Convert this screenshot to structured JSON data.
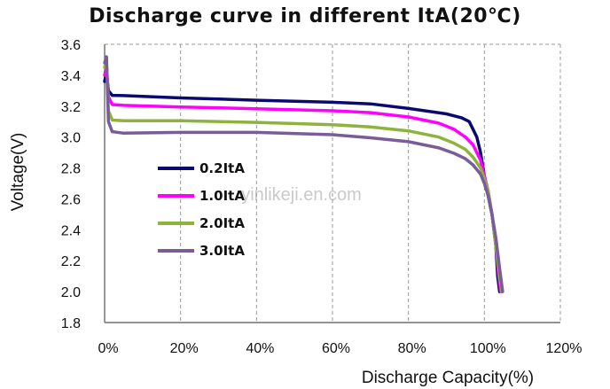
{
  "chart_data": {
    "type": "line",
    "title": "Discharge curve in different ItA(20℃)",
    "xlabel": "Discharge Capacity(%)",
    "ylabel": "Voltage(V)",
    "xlim": [
      0,
      120
    ],
    "ylim": [
      1.8,
      3.6
    ],
    "x_ticks": [
      "0%",
      "20%",
      "40%",
      "60%",
      "80%",
      "100%",
      "120%"
    ],
    "y_ticks": [
      "3.6",
      "3.4",
      "3.2",
      "3.0",
      "2.8",
      "2.6",
      "2.4",
      "2.2",
      "2.0",
      "1.8"
    ],
    "grid": {
      "vertical": true,
      "horizontal": false,
      "style": "dashed"
    },
    "legend_position": "left",
    "watermark": "yinlikeji.en.com",
    "series": [
      {
        "name": "0.2ItA",
        "color": "#0a0a6e",
        "points": [
          [
            0,
            3.36
          ],
          [
            0.5,
            3.42
          ],
          [
            1,
            3.3
          ],
          [
            2,
            3.27
          ],
          [
            5,
            3.268
          ],
          [
            20,
            3.253
          ],
          [
            40,
            3.238
          ],
          [
            60,
            3.225
          ],
          [
            70,
            3.215
          ],
          [
            80,
            3.185
          ],
          [
            90,
            3.15
          ],
          [
            94,
            3.125
          ],
          [
            96,
            3.1
          ],
          [
            98,
            3.0
          ],
          [
            99,
            2.9
          ],
          [
            100,
            2.75
          ],
          [
            101,
            2.62
          ],
          [
            102,
            2.5
          ],
          [
            103,
            2.3
          ],
          [
            103.5,
            2.1
          ],
          [
            104,
            2.0
          ]
        ]
      },
      {
        "name": "1.0ItA",
        "color": "#ff00ff",
        "points": [
          [
            0,
            3.4
          ],
          [
            0.5,
            3.46
          ],
          [
            1,
            3.26
          ],
          [
            2,
            3.21
          ],
          [
            5,
            3.205
          ],
          [
            20,
            3.195
          ],
          [
            40,
            3.183
          ],
          [
            60,
            3.17
          ],
          [
            70,
            3.158
          ],
          [
            80,
            3.13
          ],
          [
            88,
            3.09
          ],
          [
            92,
            3.05
          ],
          [
            95,
            3.0
          ],
          [
            97,
            2.95
          ],
          [
            99,
            2.85
          ],
          [
            100,
            2.75
          ],
          [
            101,
            2.65
          ],
          [
            102,
            2.5
          ],
          [
            103,
            2.3
          ],
          [
            103.8,
            2.1
          ],
          [
            104.3,
            2.0
          ]
        ]
      },
      {
        "name": "2.0ItA",
        "color": "#8db33c",
        "points": [
          [
            0,
            3.45
          ],
          [
            0.5,
            3.5
          ],
          [
            1,
            3.17
          ],
          [
            2,
            3.11
          ],
          [
            5,
            3.105
          ],
          [
            20,
            3.105
          ],
          [
            40,
            3.095
          ],
          [
            60,
            3.08
          ],
          [
            70,
            3.065
          ],
          [
            80,
            3.04
          ],
          [
            88,
            3.0
          ],
          [
            92,
            2.96
          ],
          [
            95,
            2.92
          ],
          [
            97,
            2.87
          ],
          [
            99,
            2.8
          ],
          [
            100,
            2.73
          ],
          [
            101,
            2.65
          ],
          [
            102,
            2.5
          ],
          [
            103,
            2.3
          ],
          [
            104,
            2.1
          ],
          [
            104.6,
            2.0
          ]
        ]
      },
      {
        "name": "3.0ItA",
        "color": "#7a5c98",
        "points": [
          [
            0,
            3.48
          ],
          [
            0.5,
            3.52
          ],
          [
            1,
            3.1
          ],
          [
            2,
            3.035
          ],
          [
            5,
            3.025
          ],
          [
            20,
            3.03
          ],
          [
            40,
            3.03
          ],
          [
            60,
            3.015
          ],
          [
            70,
            2.995
          ],
          [
            80,
            2.97
          ],
          [
            88,
            2.93
          ],
          [
            92,
            2.895
          ],
          [
            95,
            2.86
          ],
          [
            97,
            2.82
          ],
          [
            99,
            2.76
          ],
          [
            100,
            2.7
          ],
          [
            101,
            2.62
          ],
          [
            102,
            2.5
          ],
          [
            103,
            2.35
          ],
          [
            104,
            2.15
          ],
          [
            104.8,
            2.0
          ]
        ]
      }
    ]
  }
}
